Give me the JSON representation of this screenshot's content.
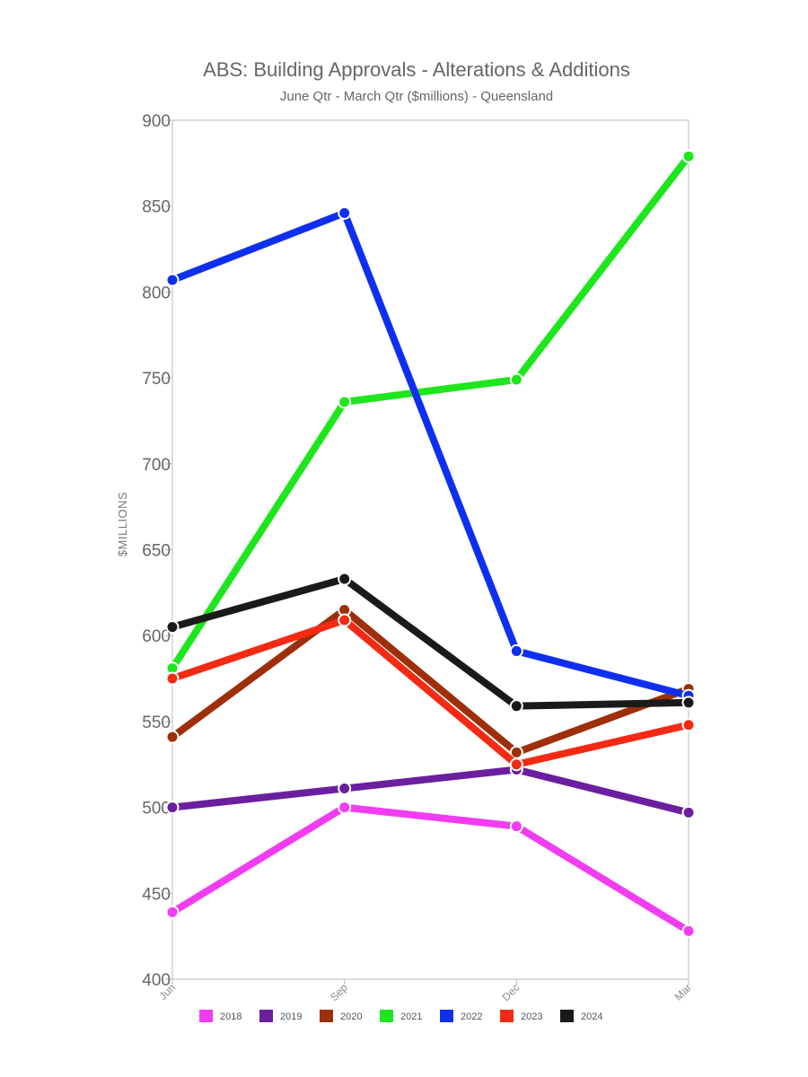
{
  "chart_data": {
    "type": "line",
    "title": "ABS: Building Approvals - Alterations & Additions",
    "subtitle": "June Qtr - March Qtr ($millions) - Queensland",
    "xlabel": "",
    "ylabel": "$MILLIONS",
    "categories": [
      "Jun",
      "Sep",
      "Dec",
      "Mar"
    ],
    "ylim": [
      400,
      900
    ],
    "yticks": [
      400,
      450,
      500,
      550,
      600,
      650,
      700,
      750,
      800,
      850,
      900
    ],
    "legend_position": "bottom",
    "grid": false,
    "series": [
      {
        "name": "2018",
        "color": "#f23cf2",
        "values": [
          439,
          500,
          489,
          428
        ]
      },
      {
        "name": "2019",
        "color": "#6b1f9e",
        "values": [
          500,
          511,
          522,
          497
        ]
      },
      {
        "name": "2020",
        "color": "#9e2f0a",
        "values": [
          541,
          615,
          532,
          569
        ]
      },
      {
        "name": "2021",
        "color": "#1ee61e",
        "values": [
          581,
          736,
          749,
          879
        ]
      },
      {
        "name": "2022",
        "color": "#0f2ff0",
        "values": [
          807,
          846,
          591,
          565
        ]
      },
      {
        "name": "2023",
        "color": "#f52a14",
        "values": [
          575,
          609,
          525,
          548
        ]
      },
      {
        "name": "2024",
        "color": "#1a1a1a",
        "values": [
          605,
          633,
          559,
          561
        ]
      }
    ]
  }
}
